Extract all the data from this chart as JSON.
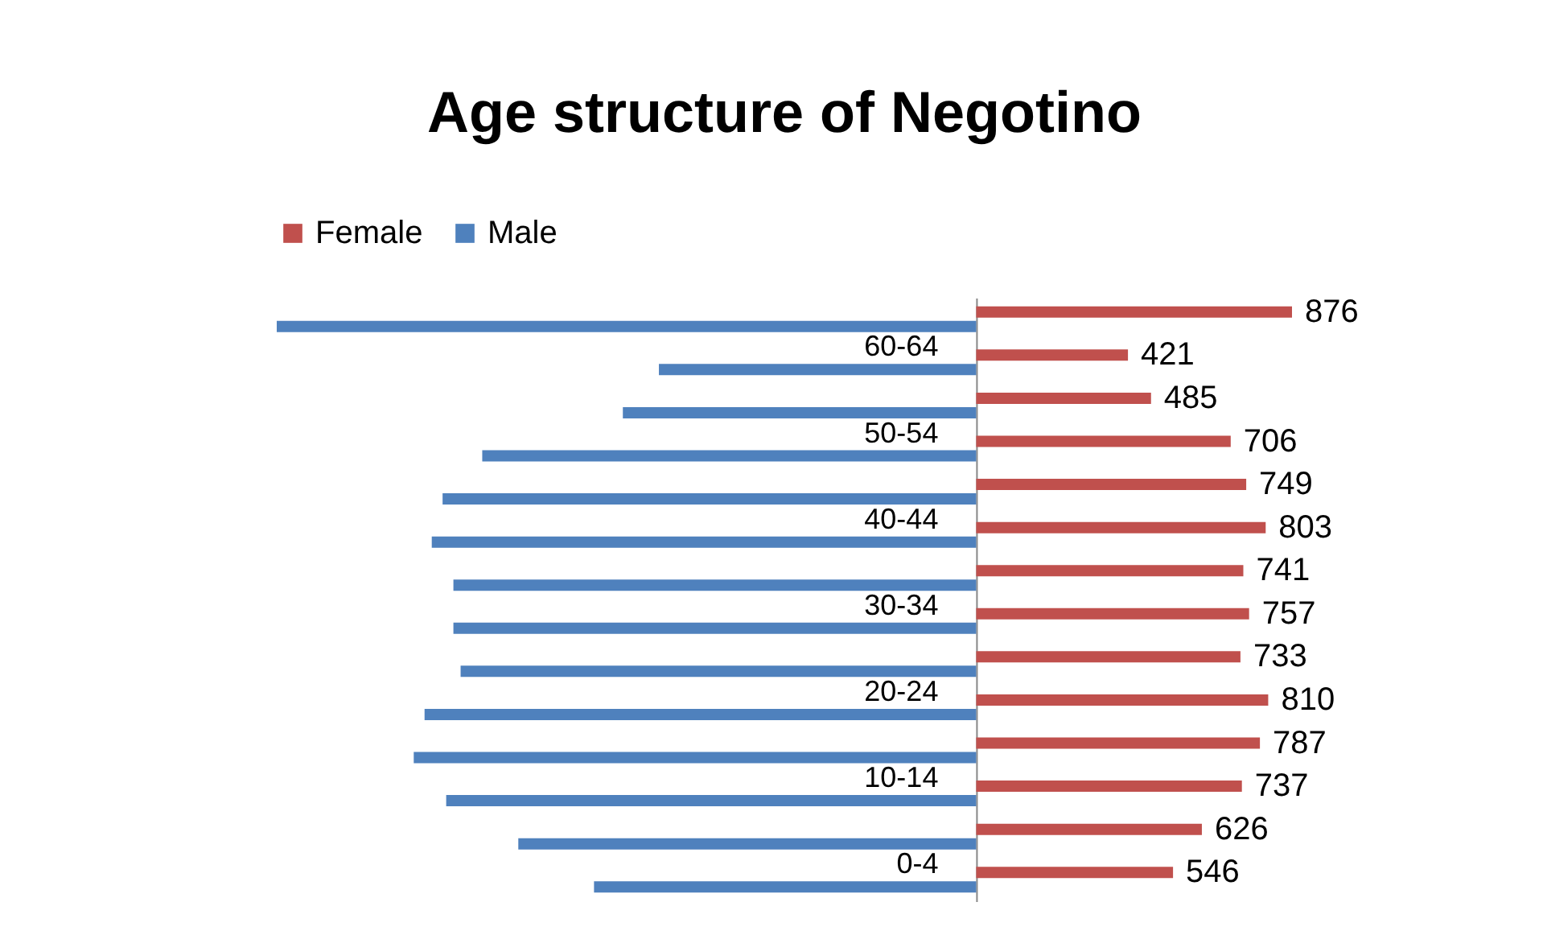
{
  "chart_data": {
    "type": "bar",
    "orientation": "horizontal",
    "title": "Age structure of Negotino",
    "categories": [
      null,
      "60-64",
      null,
      "50-54",
      null,
      "40-44",
      null,
      "30-34",
      null,
      "20-24",
      null,
      "10-14",
      null,
      "0-4"
    ],
    "series": [
      {
        "name": "Female",
        "color": "#c0504d",
        "values": [
          876,
          421,
          485,
          706,
          749,
          803,
          741,
          757,
          733,
          810,
          787,
          737,
          626,
          546
        ],
        "value_labels": [
          "876",
          "421",
          "485",
          "706",
          "749",
          "803",
          "741",
          "757",
          "733",
          "810",
          "787",
          "737",
          "626",
          "546"
        ]
      },
      {
        "name": "Male",
        "color": "#4f81bd",
        "values": [
          -1940,
          -880,
          -980,
          -1370,
          -1480,
          -1510,
          -1450,
          -1450,
          -1430,
          -1530,
          -1560,
          -1470,
          -1270,
          -1060
        ]
      }
    ],
    "tick_labels": "y",
    "legend": "top"
  }
}
